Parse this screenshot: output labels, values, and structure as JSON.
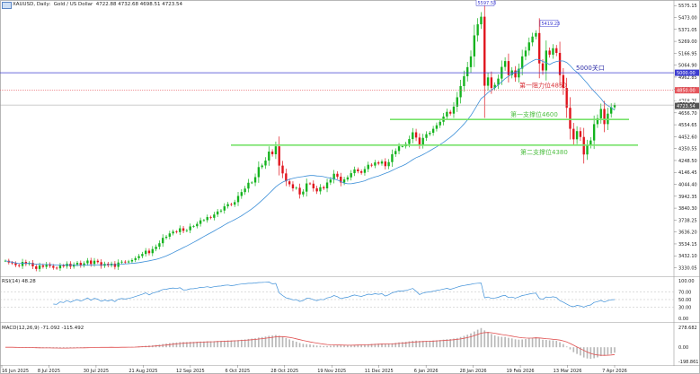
{
  "header": {
    "symbol": "XAUUSD",
    "timeframe": "Daily",
    "description": "Gold / US Dollar",
    "ohlc": "4722.88 4732.68 4698.51 4723.54"
  },
  "rsi_label": "RSI(14) 48.28",
  "macd_label": "MACD(12,26,9) -71.092 -115.492",
  "colors": {
    "bull": "#14b31e",
    "bear": "#e0131c",
    "ma": "#3c8fd8",
    "support": "#77e26a",
    "resist": "#e5555b",
    "level5000": "#3c3cd0",
    "rsi": "#3c8fd8",
    "signal": "#e05050",
    "hist": "#b8b8b8"
  },
  "chart_data": [
    {
      "type": "candlestick",
      "title": "XAUUSD, Daily, Gold / US Dollar",
      "y_ticks": [
        "5575.15",
        "5473.00",
        "5371.05",
        "5269.00",
        "5166.95",
        "5064.90",
        "4962.85",
        "4860.80",
        "4758.75",
        "4656.70",
        "4554.65",
        "4452.60",
        "4350.55",
        "4248.50",
        "4146.45",
        "4044.40",
        "3942.35",
        "3840.30",
        "3738.25",
        "3636.20",
        "3534.15",
        "3432.10",
        "3330.05"
      ],
      "ylim": [
        3265,
        5600
      ],
      "x_labels": [
        "16 Jun 2025",
        "8 Jul 2025",
        "30 Jul 2025",
        "21 Aug 2025",
        "12 Sep 2025",
        "6 Oct 2025",
        "28 Oct 2025",
        "19 Nov 2025",
        "11 Dec 2025",
        "6 Jan 2026",
        "28 Jan 2026",
        "19 Feb 2026",
        "13 Mar 2026",
        "7 Apr 2026"
      ],
      "price_tags": {
        "high": "5597.53",
        "secondary_high": "5419.23",
        "level_5000": "5000.00",
        "level_4850": "4850.00",
        "current": "4723.54",
        "prev": "4731.25"
      },
      "annotations": {
        "level_5000": "5000关口",
        "resistance": "第一阻力位4850",
        "support1": "第一支撑位4600",
        "support2": "第二支撑位4380"
      },
      "horizontal_levels": {
        "level_5000": 5000,
        "resistance": 4850,
        "support1": 4600,
        "support2": 4380,
        "current": 4723.54
      },
      "close": [
        3390,
        3375,
        3368,
        3352,
        3345,
        3380,
        3362,
        3372,
        3342,
        3320,
        3350,
        3338,
        3360,
        3345,
        3330,
        3325,
        3350,
        3342,
        3365,
        3340,
        3358,
        3372,
        3350,
        3368,
        3392,
        3362,
        3390,
        3378,
        3346,
        3364,
        3350,
        3365,
        3338,
        3375,
        3382,
        3376,
        3384,
        3396,
        3412,
        3430,
        3448,
        3476,
        3455,
        3490,
        3510,
        3540,
        3586,
        3596,
        3624,
        3640,
        3635,
        3668,
        3646,
        3651,
        3684,
        3686,
        3706,
        3736,
        3738,
        3764,
        3758,
        3786,
        3812,
        3820,
        3856,
        3875,
        3870,
        3892,
        3945,
        3978,
        4008,
        4058,
        4060,
        4106,
        4192,
        4206,
        4248,
        4325,
        4302,
        4370,
        4205,
        4138,
        4070,
        4045,
        4010,
        4015,
        3958,
        3982,
        4052,
        4050,
        4010,
        3984,
        4020,
        4010,
        4060,
        4085,
        4135,
        4110,
        4060,
        4086,
        4104,
        4140,
        4172,
        4156,
        4143,
        4175,
        4212,
        4205,
        4232,
        4222,
        4240,
        4200,
        4235,
        4302,
        4330,
        4370,
        4370,
        4390,
        4432,
        4490,
        4445,
        4386,
        4442,
        4474,
        4486,
        4520,
        4550,
        4580,
        4625,
        4665,
        4650,
        4710,
        4790,
        4886,
        4970,
        5048,
        5140,
        5320,
        5415,
        5480,
        4889,
        4960,
        4870,
        4896,
        4950,
        5050,
        5100,
        4980,
        5020,
        4960,
        5035,
        5140,
        5190,
        5260,
        5310,
        5340,
        5080,
        5020,
        5190,
        5155,
        5210,
        5170,
        4980,
        4870,
        4700,
        4520,
        4430,
        4500,
        4450,
        4300,
        4380,
        4420,
        4560,
        4610,
        4690,
        4560,
        4650,
        4704,
        4723.54
      ],
      "ma_period": 20,
      "rsi": {
        "value": 48.28,
        "levels": [
          70,
          50,
          30
        ],
        "axis_ticks": [
          "100.00",
          "70.00",
          "50.00",
          "30.00",
          "0.00"
        ]
      },
      "macd": {
        "value": -71.092,
        "signal": -115.492,
        "axis_ticks": [
          "278.682",
          "0.00",
          "-198.861"
        ]
      }
    }
  ]
}
